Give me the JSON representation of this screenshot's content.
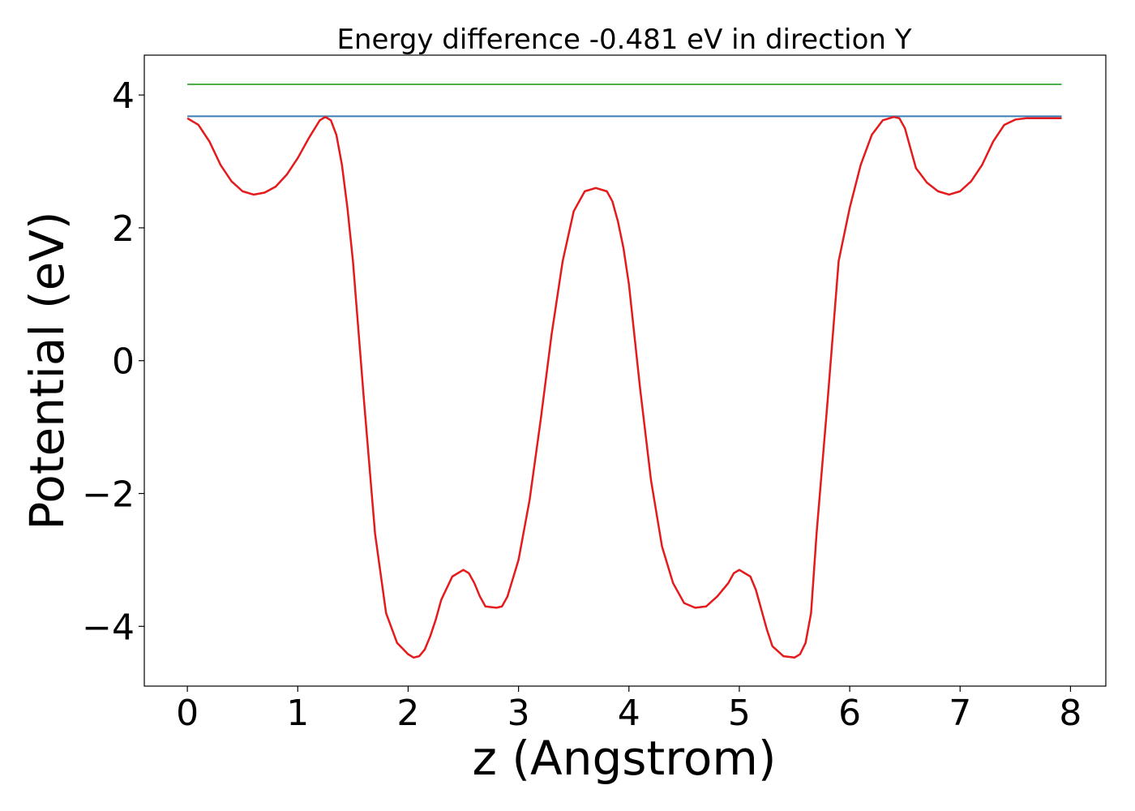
{
  "chart_data": {
    "type": "line",
    "title": "Energy difference -0.481 eV in direction Y",
    "xlabel": "z (Angstrom)",
    "ylabel": "Potential (eV)",
    "xlim": [
      -0.39,
      8.32
    ],
    "ylim": [
      -4.9,
      4.6
    ],
    "xticks": [
      0,
      1,
      2,
      3,
      4,
      5,
      6,
      7,
      8
    ],
    "xtick_labels": [
      "0",
      "1",
      "2",
      "3",
      "4",
      "5",
      "6",
      "7",
      "8"
    ],
    "yticks": [
      -4,
      -2,
      0,
      2,
      4
    ],
    "ytick_labels": [
      "−4",
      "−2",
      "0",
      "2",
      "4"
    ],
    "grid": false,
    "colors": {
      "potential": "#e41a1c",
      "level_blue": "#377eb8",
      "level_green": "#4daf4a"
    },
    "series": [
      {
        "key": "potential",
        "x": [
          0,
          0.1,
          0.2,
          0.3,
          0.4,
          0.5,
          0.6,
          0.7,
          0.8,
          0.9,
          1.0,
          1.1,
          1.2,
          1.25,
          1.3,
          1.35,
          1.4,
          1.45,
          1.5,
          1.6,
          1.7,
          1.8,
          1.9,
          2.0,
          2.05,
          2.1,
          2.15,
          2.2,
          2.25,
          2.3,
          2.4,
          2.5,
          2.55,
          2.6,
          2.65,
          2.7,
          2.8,
          2.85,
          2.9,
          3.0,
          3.1,
          3.2,
          3.3,
          3.4,
          3.5,
          3.6,
          3.7,
          3.8,
          3.85,
          3.9,
          3.95,
          4.0,
          4.1,
          4.2,
          4.3,
          4.4,
          4.5,
          4.6,
          4.7,
          4.8,
          4.9,
          4.95,
          5.0,
          5.1,
          5.15,
          5.2,
          5.25,
          5.3,
          5.4,
          5.5,
          5.55,
          5.6,
          5.65,
          5.7,
          5.8,
          5.9,
          6.0,
          6.1,
          6.2,
          6.3,
          6.4,
          6.45,
          6.5,
          6.55,
          6.6,
          6.7,
          6.8,
          6.9,
          7.0,
          7.1,
          7.2,
          7.3,
          7.4,
          7.5,
          7.6,
          7.7,
          7.8,
          7.85,
          7.92
        ],
        "y": [
          3.65,
          3.55,
          3.3,
          2.95,
          2.7,
          2.55,
          2.5,
          2.53,
          2.62,
          2.8,
          3.05,
          3.35,
          3.62,
          3.67,
          3.62,
          3.4,
          2.95,
          2.3,
          1.5,
          -0.6,
          -2.6,
          -3.8,
          -4.25,
          -4.42,
          -4.47,
          -4.45,
          -4.35,
          -4.15,
          -3.9,
          -3.6,
          -3.25,
          -3.15,
          -3.2,
          -3.35,
          -3.55,
          -3.7,
          -3.72,
          -3.7,
          -3.55,
          -3.0,
          -2.1,
          -0.9,
          0.4,
          1.5,
          2.25,
          2.55,
          2.6,
          2.55,
          2.4,
          2.1,
          1.7,
          1.15,
          -0.4,
          -1.8,
          -2.8,
          -3.35,
          -3.65,
          -3.72,
          -3.7,
          -3.55,
          -3.35,
          -3.2,
          -3.15,
          -3.25,
          -3.45,
          -3.75,
          -4.05,
          -4.3,
          -4.45,
          -4.47,
          -4.42,
          -4.25,
          -3.8,
          -2.6,
          -0.6,
          1.5,
          2.3,
          2.95,
          3.4,
          3.62,
          3.67,
          3.65,
          3.5,
          3.2,
          2.9,
          2.68,
          2.55,
          2.5,
          2.55,
          2.7,
          2.95,
          3.3,
          3.55,
          3.63,
          3.65,
          3.65,
          3.65,
          3.65,
          3.65
        ]
      },
      {
        "key": "level_blue",
        "x": [
          0,
          7.92
        ],
        "y": [
          3.68,
          3.68
        ]
      },
      {
        "key": "level_green",
        "x": [
          0,
          7.92
        ],
        "y": [
          4.16,
          4.16
        ]
      }
    ]
  }
}
